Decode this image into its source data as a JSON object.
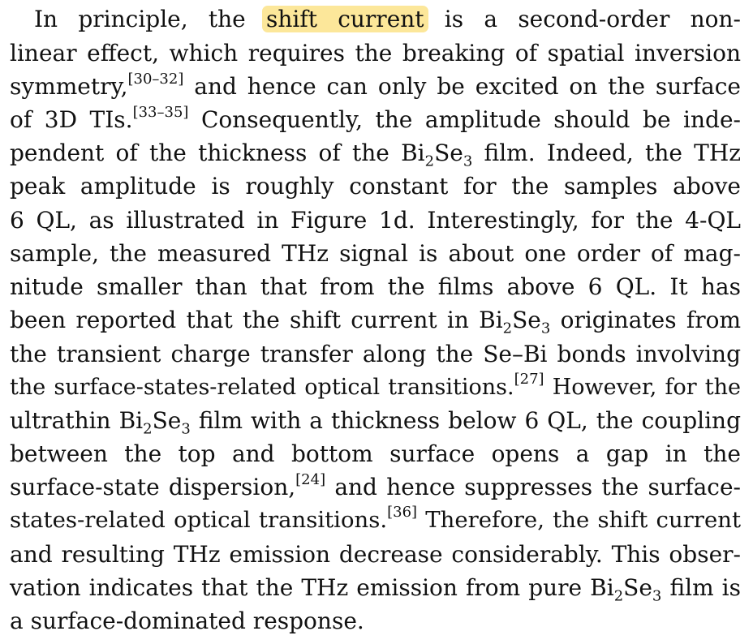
{
  "paragraph": {
    "l1a": "In principle, the",
    "l1_highlight": "shift current",
    "l1b": "is a second-order non-",
    "l2": "linear effect, which requires the breaking of spatial inversion",
    "l3a": "symmetry,",
    "l3_ref": "[30–32]",
    "l3b": "and hence can only be excited on the surface",
    "l4a": "of 3D TIs.",
    "l4_ref": "[33–35]",
    "l4b": "Consequently, the amplitude should be inde-",
    "l5a": "pendent of the thickness of the Bi",
    "l5_sub1": "2",
    "l5b": "Se",
    "l5_sub2": "3",
    "l5c": "film. Indeed, the THz",
    "l6": "peak amplitude is roughly constant for the samples above",
    "l7": "6 QL, as illustrated in Figure 1d. Interestingly, for the 4-QL",
    "l8": "sample, the measured THz signal is about one order of mag-",
    "l9": "nitude smaller than that from the films above 6 QL. It has",
    "l10a": "been reported that the shift current in Bi",
    "l10_sub1": "2",
    "l10b": "Se",
    "l10_sub2": "3",
    "l10c": "originates from",
    "l11": "the transient charge transfer along the Se–Bi bonds involving",
    "l12a": "the surface-states-related optical transitions.",
    "l12_ref": "[27]",
    "l12b": "However, for the",
    "l13a": "ultrathin Bi",
    "l13_sub1": "2",
    "l13b": "Se",
    "l13_sub2": "3",
    "l13c": "film with a thickness below 6 QL, the coupling",
    "l14": "between the top and bottom surface opens a gap in the",
    "l15a": "surface-state dispersion,",
    "l15_ref": "[24]",
    "l15b": "and hence suppresses the surface-",
    "l16a": "states-related optical transitions.",
    "l16_ref": "[36]",
    "l16b": "Therefore, the shift current",
    "l17": "and resulting THz emission decrease considerably. This obser-",
    "l18a": "vation indicates that the THz emission from pure Bi",
    "l18_sub1": "2",
    "l18b": "Se",
    "l18_sub2": "3",
    "l18c": "film is",
    "l19": "a surface-dominated response."
  },
  "colors": {
    "highlight": "#fce79a",
    "text": "#111111",
    "background": "#ffffff"
  }
}
